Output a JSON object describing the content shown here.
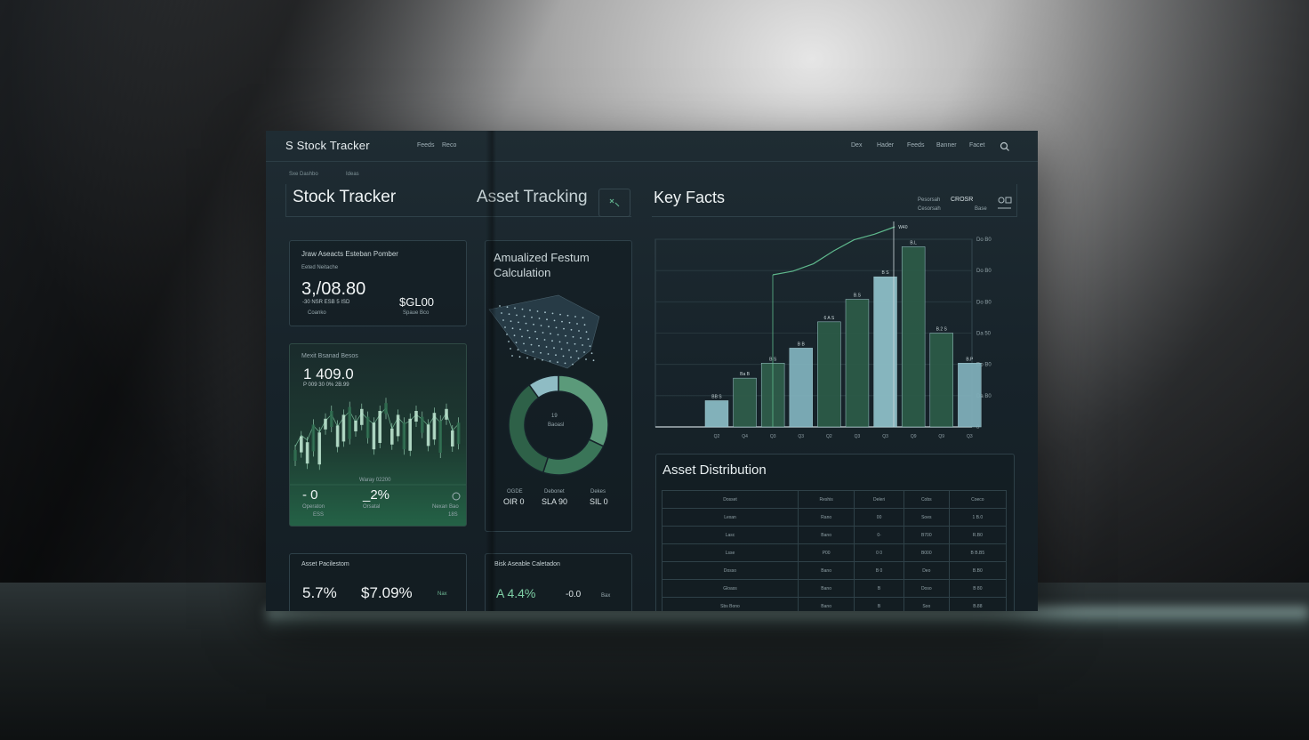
{
  "app": {
    "logo_text": "S Stock Tracker",
    "nav_left": [
      "Feeds",
      "Reco"
    ],
    "nav_right": [
      "Dex",
      "Hader",
      "Feeds",
      "Banner",
      "Facet"
    ],
    "breadcrumb": [
      "Sxe Dashbo",
      "Ideas"
    ]
  },
  "header": {
    "stock_title": "Stock Tracker",
    "asset_title": "Asset Tracking",
    "asset_toggle_icon": "expand-icon",
    "key_title": "Key Facts",
    "key_meta_1": "Pesorsah",
    "key_meta_2": "CROSR",
    "key_meta_3": "Cesorsah",
    "key_meta_4": "Base"
  },
  "cards": {
    "balance": {
      "title": "Jraw Aseacts Esteban Pomber",
      "sub": "Eeted Neitache",
      "value": "3,/08.80",
      "value_sub": "-30 NSR  ESB 5 ISD",
      "value_sub2": "Coanko",
      "side_value": "$GL00",
      "side_sub": "Spaue Bco"
    },
    "market": {
      "title": "Mexit Bsanad Besos",
      "value": "1 409.0",
      "sub": "P 009 30  0% 2B.99",
      "mid_label": "Waray 02200",
      "stat1_value": "- 0",
      "stat1_label": "Operaton",
      "stat1_sub": "ESS",
      "stat2_value": "_2%",
      "stat2_label": "Orsatal",
      "stat3_label": "Nexan Bao",
      "stat3_sub": "18S"
    },
    "annualized": {
      "title": "Amualized Festum Calculation",
      "donut_center": "19",
      "donut_center_sub": "Baoasl",
      "s1_label": "OGDE",
      "s1_value": "OIR 0",
      "s2_label": "Debonet",
      "s2_value": "SLA 90",
      "s3_label": "Dekes",
      "s3_value": "SIL 0"
    },
    "asset_return": {
      "title": "Asset Pacilestom",
      "v1": "5.7%",
      "v2": "$7.09%",
      "v3": "Nax"
    },
    "risk": {
      "title": "Bisk Aseable Caletadon",
      "v1": "A 4.4%",
      "v2": "-0.0",
      "v3": "Bax"
    }
  },
  "distribution": {
    "title": "Asset Distribution",
    "headers": [
      "Dosset",
      "Reshis",
      "Deleri",
      "Cobs",
      "Coeco"
    ],
    "rows": [
      [
        "Lexan",
        "Rano",
        "00",
        "Soes",
        "1 B.0"
      ],
      [
        "Lasc",
        "Bano",
        "0-",
        "B700",
        "R.B0"
      ],
      [
        "Lsse",
        "P00",
        "0 0",
        "B000",
        "B B.B5"
      ],
      [
        "Dosso",
        "Bano",
        "B 0",
        "Deo",
        "B.B0"
      ],
      [
        "Gloass",
        "Bano",
        "B",
        "Doso",
        "B 80"
      ],
      [
        "Sbs Bono",
        "Bano",
        "B",
        "Soo",
        "B.88"
      ]
    ]
  },
  "chart_data": {
    "type": "bar",
    "categories": [
      "Q2",
      "Q4",
      "Q3",
      "Q3",
      "Q2",
      "Q3",
      "Q3",
      "Q9",
      "Q9",
      "Q3"
    ],
    "values": [
      14,
      26,
      34,
      42,
      56,
      68,
      80,
      96,
      50,
      34
    ],
    "value_labels": [
      "BB S",
      "Ba B",
      "B S",
      "B B",
      "6 A S",
      "B.S",
      "B S",
      "B.L",
      "B.2 S",
      "B.P"
    ],
    "ylim": [
      0,
      100
    ],
    "y_ticks": [
      "0",
      "Da B0",
      "Do B0",
      "Da 50",
      "Do B0",
      "Do B0",
      "Do B0"
    ],
    "bar_colors": [
      "#88b9c2",
      "#2f5c4a",
      "#2f5c4a",
      "#7fb0bb",
      "#2c5a47",
      "#2c5a47",
      "#8cbdc6",
      "#2c5a47",
      "#2c5a47",
      "#7faeb9"
    ],
    "trend": [
      48,
      52,
      60,
      74,
      86,
      92,
      100
    ],
    "trend_label": "W40",
    "grid": true
  }
}
